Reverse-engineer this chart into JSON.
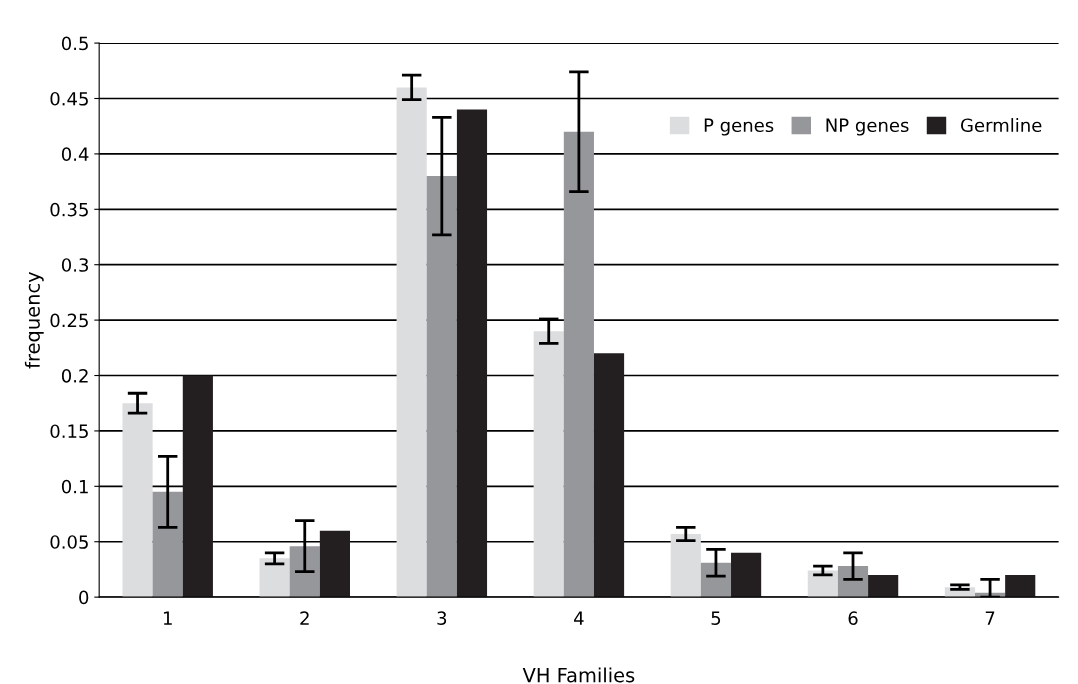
{
  "chart_data": {
    "type": "bar",
    "xlabel": "VH Families",
    "ylabel": "frequency",
    "categories": [
      "1",
      "2",
      "3",
      "4",
      "5",
      "6",
      "7"
    ],
    "series": [
      {
        "name": "P genes",
        "color": "#dcdddf",
        "values": [
          0.175,
          0.035,
          0.46,
          0.24,
          0.057,
          0.024,
          0.009
        ],
        "errors": [
          0.009,
          0.005,
          0.011,
          0.011,
          0.006,
          0.004,
          0.002
        ]
      },
      {
        "name": "NP genes",
        "color": "#96979b",
        "values": [
          0.095,
          0.046,
          0.38,
          0.42,
          0.031,
          0.028,
          0.004
        ],
        "errors": [
          0.032,
          0.023,
          0.053,
          0.054,
          0.012,
          0.012,
          [
            0,
            0.016
          ]
        ]
      },
      {
        "name": "Germline",
        "color": "#231f20",
        "values": [
          0.2,
          0.06,
          0.44,
          0.22,
          0.04,
          0.02,
          0.02
        ]
      }
    ],
    "ylim": [
      0,
      0.5
    ],
    "yticks": [
      0,
      {
        "value": 0.05,
        "label": "0.05"
      },
      {
        "value": 0.1,
        "label": "0.1"
      },
      {
        "value": 0.15,
        "label": "0.15"
      },
      {
        "value": 0.2,
        "label": "0.2"
      },
      {
        "value": 0.25,
        "label": "0.25"
      },
      {
        "value": 0.3,
        "label": "0.3"
      },
      {
        "value": 0.35,
        "label": "0.35"
      },
      {
        "value": 0.4,
        "label": "0.4"
      },
      {
        "value": 0.45,
        "label": "0.45"
      },
      {
        "value": 0.5,
        "label": "0.5"
      }
    ],
    "grid": "y",
    "legend": "top right"
  }
}
